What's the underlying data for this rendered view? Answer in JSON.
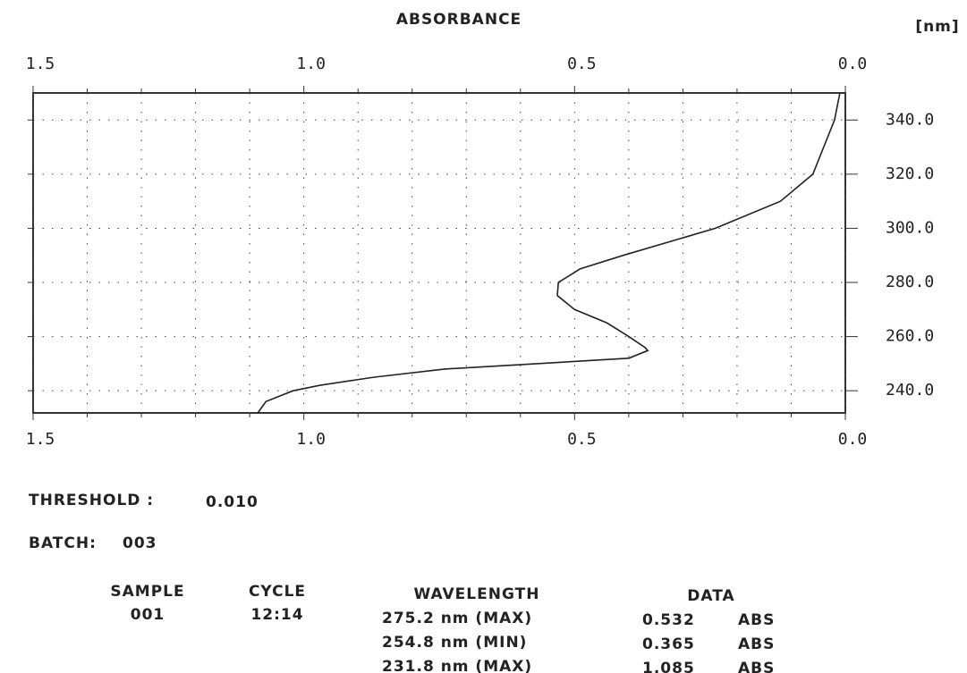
{
  "chart_data": {
    "type": "line",
    "title": "ABSORBANCE",
    "y_unit": "[nm]",
    "series": [
      {
        "color": "#222222",
        "x": [
          0.01,
          0.02,
          0.06,
          0.12,
          0.24,
          0.41,
          0.49,
          0.53,
          0.532,
          0.5,
          0.44,
          0.4,
          0.37,
          0.365,
          0.4,
          0.57,
          0.74,
          0.87,
          0.97,
          1.02,
          1.07,
          1.085
        ],
        "y": [
          350,
          340,
          320,
          310,
          300,
          290,
          285,
          280,
          275.2,
          270,
          265,
          260,
          256,
          254.8,
          252,
          250,
          248,
          245,
          242,
          240,
          236,
          231.8
        ]
      }
    ],
    "xlim": [
      1.5,
      0.0
    ],
    "xticks": [
      1.5,
      {
        "value": 1,
        "label": "1.0"
      },
      0.5,
      {
        "value": 0,
        "label": "0.0"
      }
    ],
    "x_minor_ticks": [
      1.4,
      1.3,
      1.2,
      1.1,
      0.9,
      0.8,
      0.7,
      0.6,
      0.4,
      0.3,
      0.2,
      0.1
    ],
    "ylim": [
      231.8,
      350
    ],
    "yticks": [
      {
        "value": 240,
        "label": "240.0"
      },
      {
        "value": 260,
        "label": "260.0"
      },
      {
        "value": 280,
        "label": "280.0"
      },
      {
        "value": 300,
        "label": "300.0"
      },
      {
        "value": 320,
        "label": "320.0"
      },
      {
        "value": 340,
        "label": "340.0"
      }
    ],
    "grid": true
  },
  "threshold": {
    "label": "THRESHOLD :",
    "value": "0.010"
  },
  "batch": {
    "label": "BATCH:",
    "value": "003"
  },
  "results": {
    "headers": [
      "SAMPLE",
      "CYCLE",
      "WAVELENGTH",
      "DATA"
    ],
    "sample": "001",
    "cycle": "12:14",
    "peaks": [
      {
        "wavelength": "275.2 nm (MAX)",
        "data": "0.532",
        "unit": "ABS"
      },
      {
        "wavelength": "254.8 nm (MIN)",
        "data": "0.365",
        "unit": "ABS"
      },
      {
        "wavelength": "231.8 nm (MAX)",
        "data": "1.085",
        "unit": "ABS"
      }
    ]
  }
}
